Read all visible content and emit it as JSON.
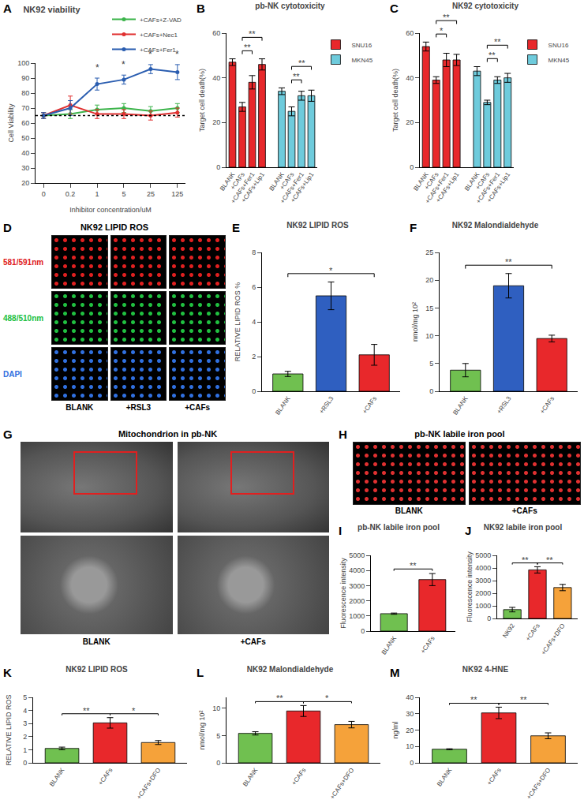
{
  "chart_data": [
    {
      "panel": "A",
      "type": "line",
      "title": "NK92 viability",
      "x_label": "Inhibitor concentration/uM",
      "y_label": "Cell Viability",
      "categories": [
        "0",
        "0.2",
        "1",
        "5",
        "25",
        "125"
      ],
      "ylim": [
        20,
        100
      ],
      "yticks": [
        20,
        30,
        40,
        50,
        60,
        70,
        80,
        90,
        100
      ],
      "legend": "top right",
      "marker": "circle",
      "line_style": "solid",
      "reference_line": 65,
      "series": [
        {
          "name": "+CAFs+Z-VAD",
          "color": "#3cb44b",
          "values": [
            65,
            66,
            69,
            70,
            68,
            70
          ],
          "errors": [
            2,
            3,
            3,
            3,
            3,
            3
          ]
        },
        {
          "name": "+CAFs+Nec1",
          "color": "#e03030",
          "values": [
            65,
            72,
            66,
            66,
            65,
            67
          ],
          "errors": [
            2,
            6,
            3,
            3,
            3,
            3
          ]
        },
        {
          "name": "+CAFs+Fer1",
          "color": "#2a5db0",
          "values": [
            65,
            70,
            86,
            89,
            96,
            94
          ],
          "errors": [
            2,
            5,
            4,
            3,
            3,
            5
          ]
        }
      ],
      "annotations": [
        {
          "series": "+CAFs+Fer1",
          "category": "1",
          "text": "*"
        },
        {
          "series": "+CAFs+Fer1",
          "category": "5",
          "text": "*"
        },
        {
          "series": "+CAFs+Fer1",
          "category": "25",
          "text": "*"
        },
        {
          "series": "+CAFs+Fer1",
          "category": "125",
          "text": "*"
        }
      ]
    },
    {
      "panel": "B",
      "type": "bar",
      "title": "pb-NK cytotoxicity",
      "y_label": "Target cell death(%)",
      "categories": [
        "BLANK",
        "+CAFs",
        "+CAFs+Fer1",
        "+CAFs+Lip1"
      ],
      "ylim": [
        0,
        60
      ],
      "yticks": [
        0,
        20,
        40,
        60
      ],
      "legend": "right",
      "series": [
        {
          "name": "SNU16",
          "color": "#e8282b",
          "values": [
            47,
            27,
            38,
            46
          ],
          "errors": [
            1.5,
            2,
            3,
            2.5
          ]
        },
        {
          "name": "MKN45",
          "color": "#6ecbdc",
          "values": [
            34,
            25,
            32,
            32
          ],
          "errors": [
            1.5,
            2,
            2,
            2.5
          ]
        }
      ],
      "significance": [
        {
          "series": 0,
          "from": 1,
          "to": 2,
          "label": "**"
        },
        {
          "series": 0,
          "from": 1,
          "to": 3,
          "label": "**"
        },
        {
          "series": 1,
          "from": 1,
          "to": 2,
          "label": "**"
        },
        {
          "series": 1,
          "from": 1,
          "to": 3,
          "label": "**"
        }
      ]
    },
    {
      "panel": "C",
      "type": "bar",
      "title": "NK92 cytotoxicity",
      "y_label": "Target cell death(%)",
      "categories": [
        "BLANK",
        "+CAFs",
        "+CAFs+Fer1",
        "+CAFs+Lip1"
      ],
      "ylim": [
        0,
        60
      ],
      "yticks": [
        0,
        20,
        40,
        60
      ],
      "legend": "right",
      "series": [
        {
          "name": "SNU16",
          "color": "#e8282b",
          "values": [
            54,
            39,
            48,
            48
          ],
          "errors": [
            2,
            1.5,
            3,
            2.5
          ]
        },
        {
          "name": "MKN45",
          "color": "#6ecbdc",
          "values": [
            43,
            29,
            39,
            40
          ],
          "errors": [
            2,
            1,
            1.5,
            2
          ]
        }
      ],
      "significance": [
        {
          "series": 0,
          "from": 1,
          "to": 2,
          "label": "*"
        },
        {
          "series": 0,
          "from": 1,
          "to": 3,
          "label": "**"
        },
        {
          "series": 1,
          "from": 1,
          "to": 2,
          "label": "**"
        },
        {
          "series": 1,
          "from": 1,
          "to": 3,
          "label": "**"
        }
      ]
    },
    {
      "panel": "D",
      "type": "image",
      "title": "NK92 LIPID ROS",
      "row_labels": [
        "581/591nm",
        "488/510nm",
        "DAPI"
      ],
      "row_colors": [
        "#e02020",
        "#20c040",
        "#3070e0"
      ],
      "columns": [
        "BLANK",
        "+RSL3",
        "+CAFs"
      ]
    },
    {
      "panel": "E",
      "type": "bar",
      "title": "NK92 LIPID ROS",
      "y_label": "RELATIVE LIPID ROS %",
      "categories": [
        "BLANK",
        "+RSL3",
        "+CAFs"
      ],
      "values": [
        1.0,
        5.5,
        2.1
      ],
      "errors": [
        0.15,
        0.8,
        0.6
      ],
      "colors": [
        "#70c050",
        "#2f5fc0",
        "#e8282b"
      ],
      "ylim": [
        0,
        8
      ],
      "yticks": [
        0,
        2,
        4,
        6,
        8
      ],
      "significance": [
        {
          "from": 0,
          "to": 2,
          "label": "*"
        }
      ]
    },
    {
      "panel": "F",
      "type": "bar",
      "title": "NK92 Malondialdehyde",
      "y_label": "nmol/mg 10²",
      "categories": [
        "BLANK",
        "+RSL3",
        "+CAFs"
      ],
      "values": [
        3.8,
        19,
        9.5
      ],
      "errors": [
        1.2,
        2.2,
        0.6
      ],
      "colors": [
        "#70c050",
        "#2f5fc0",
        "#e8282b"
      ],
      "ylim": [
        0,
        25
      ],
      "yticks": [
        0,
        5,
        10,
        15,
        20,
        25
      ],
      "significance": [
        {
          "from": 0,
          "to": 2,
          "label": "**"
        }
      ]
    },
    {
      "panel": "G",
      "type": "image",
      "title": "Mitochondrion in pb-NK",
      "columns": [
        "BLANK",
        "+CAFs"
      ]
    },
    {
      "panel": "H",
      "type": "image",
      "title": "pb-NK labile iron pool",
      "columns": [
        "BLANK",
        "+CAFs"
      ]
    },
    {
      "panel": "I",
      "type": "bar",
      "title": "pb-NK labile iron pool",
      "y_label": "Fluorescence intensity",
      "categories": [
        "BLANK",
        "+CAFs"
      ],
      "values": [
        1150,
        3400
      ],
      "errors": [
        40,
        400
      ],
      "colors": [
        "#70c050",
        "#e8282b"
      ],
      "ylim": [
        0,
        5000
      ],
      "yticks": [
        0,
        1000,
        2000,
        3000,
        4000,
        5000
      ],
      "significance": [
        {
          "from": 0,
          "to": 1,
          "label": "**"
        }
      ]
    },
    {
      "panel": "J",
      "type": "bar",
      "title": "NK92 labile iron pool",
      "y_label": "Fluorescence intensity",
      "categories": [
        "NK92",
        "+CAFs",
        "+CAFs+DFO"
      ],
      "values": [
        700,
        3850,
        2450
      ],
      "errors": [
        180,
        250,
        250
      ],
      "colors": [
        "#70c050",
        "#e8282b",
        "#f5a23a"
      ],
      "ylim": [
        0,
        5000
      ],
      "yticks": [
        0,
        1000,
        2000,
        3000,
        4000,
        5000
      ],
      "significance": [
        {
          "from": 0,
          "to": 1,
          "label": "**"
        },
        {
          "from": 1,
          "to": 2,
          "label": "**"
        }
      ]
    },
    {
      "panel": "K",
      "type": "bar",
      "title": "NK92 LIPID ROS",
      "y_label": "RELATIVE LIPID ROS",
      "categories": [
        "BLANK",
        "+CAFs",
        "+CAFs+DFO"
      ],
      "values": [
        1.1,
        3.05,
        1.55
      ],
      "errors": [
        0.1,
        0.4,
        0.15
      ],
      "colors": [
        "#70c050",
        "#e8282b",
        "#f5a23a"
      ],
      "ylim": [
        0,
        5
      ],
      "yticks": [
        0,
        1,
        2,
        3,
        4,
        5
      ],
      "significance": [
        {
          "from": 0,
          "to": 1,
          "label": "**"
        },
        {
          "from": 1,
          "to": 2,
          "label": "*"
        }
      ]
    },
    {
      "panel": "L",
      "type": "bar",
      "title": "NK92 Malondialdehyde",
      "y_label": "nmol/mg 10²",
      "categories": [
        "BLANK",
        "+CAFs",
        "+CAFs+DFO"
      ],
      "values": [
        5.4,
        9.5,
        7.0
      ],
      "errors": [
        0.3,
        1.0,
        0.6
      ],
      "colors": [
        "#70c050",
        "#e8282b",
        "#f5a23a"
      ],
      "ylim": [
        0,
        12
      ],
      "yticks": [
        0,
        5,
        10
      ],
      "significance": [
        {
          "from": 0,
          "to": 1,
          "label": "**"
        },
        {
          "from": 1,
          "to": 2,
          "label": "*"
        }
      ]
    },
    {
      "panel": "M",
      "type": "bar",
      "title": "NK92 4-HNE",
      "y_label": "ng/ml",
      "categories": [
        "BLANK",
        "+CAFs",
        "+CAFs+DFO"
      ],
      "values": [
        8.3,
        30.5,
        16.5
      ],
      "errors": [
        0.3,
        3.5,
        1.8
      ],
      "colors": [
        "#70c050",
        "#e8282b",
        "#f5a23a"
      ],
      "ylim": [
        0,
        40
      ],
      "yticks": [
        0,
        10,
        20,
        30,
        40
      ],
      "significance": [
        {
          "from": 0,
          "to": 1,
          "label": "**"
        },
        {
          "from": 1,
          "to": 2,
          "label": "**"
        }
      ]
    }
  ]
}
